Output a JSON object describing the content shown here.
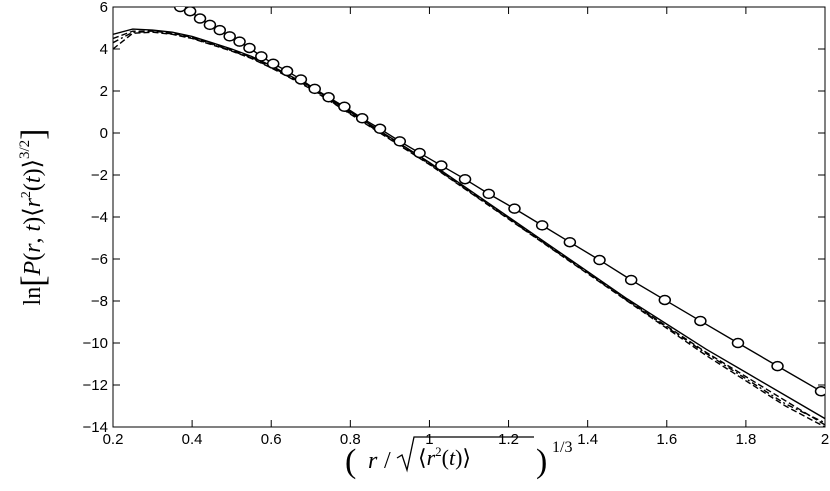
{
  "chart_data": {
    "type": "line",
    "title": "",
    "xlabel": "(r/√⟨r²(t)⟩)^{1/3}",
    "ylabel": "ln[P(r,t)⟨r²(t)⟩^{3/2}]",
    "xlim": [
      0.2,
      2.0
    ],
    "ylim": [
      -14,
      6
    ],
    "grid": false,
    "xticks": [
      0.2,
      0.4,
      0.6,
      0.8,
      1,
      1.2,
      1.4,
      1.6,
      1.8,
      2
    ],
    "xtick_labels": [
      "0.2",
      "0.4",
      "0.6",
      "0.8",
      "1",
      "1.2",
      "1.4",
      "1.6",
      "1.8",
      "2"
    ],
    "yticks": [
      -14,
      -12,
      -10,
      -8,
      -6,
      -4,
      -2,
      0,
      2,
      4,
      6
    ],
    "ytick_labels": [
      "−14",
      "−12",
      "−10",
      "−8",
      "−6",
      "−4",
      "−2",
      "0",
      "2",
      "4",
      "6"
    ],
    "series": [
      {
        "style": "solid",
        "x": [
          0.2,
          0.25,
          0.3,
          0.35,
          0.4,
          0.45,
          0.5,
          0.55,
          0.6,
          0.65,
          0.7,
          0.75,
          0.8,
          0.9,
          1.0,
          1.1,
          1.2,
          1.3,
          1.4,
          1.5,
          1.6,
          1.7,
          1.8,
          1.9,
          2.0
        ],
        "y": [
          4.7,
          4.95,
          4.9,
          4.8,
          4.6,
          4.3,
          4.0,
          3.65,
          3.2,
          2.7,
          2.2,
          1.6,
          1.0,
          -0.2,
          -1.4,
          -2.7,
          -4.0,
          -5.3,
          -6.6,
          -7.9,
          -9.1,
          -10.3,
          -11.4,
          -12.5,
          -13.6
        ]
      },
      {
        "style": "dashed",
        "x": [
          0.2,
          0.25,
          0.3,
          0.35,
          0.4,
          0.45,
          0.5,
          0.55,
          0.6,
          0.65,
          0.7,
          0.75,
          0.8,
          0.9,
          1.0,
          1.1,
          1.2,
          1.3,
          1.4,
          1.5,
          1.6,
          1.7,
          1.8,
          1.9,
          2.0
        ],
        "y": [
          4.5,
          4.85,
          4.85,
          4.75,
          4.55,
          4.25,
          3.95,
          3.6,
          3.15,
          2.65,
          2.15,
          1.55,
          0.95,
          -0.25,
          -1.45,
          -2.75,
          -4.05,
          -5.35,
          -6.65,
          -7.95,
          -9.2,
          -10.45,
          -11.6,
          -12.75,
          -13.9
        ]
      },
      {
        "style": "dashed",
        "x": [
          0.2,
          0.25,
          0.3,
          0.35,
          0.4,
          0.45,
          0.5,
          0.55,
          0.6,
          0.65,
          0.7,
          0.75,
          0.8,
          0.9,
          1.0,
          1.1,
          1.2,
          1.3,
          1.4,
          1.5,
          1.6,
          1.7,
          1.8,
          1.9,
          2.0
        ],
        "y": [
          4.0,
          4.75,
          4.8,
          4.7,
          4.5,
          4.2,
          3.9,
          3.55,
          3.1,
          2.6,
          2.1,
          1.5,
          0.9,
          -0.3,
          -1.5,
          -2.8,
          -4.1,
          -5.4,
          -6.7,
          -8.0,
          -9.3,
          -10.6,
          -11.8,
          -13.0,
          -14.0
        ]
      },
      {
        "style": "dash-dot",
        "x": [
          0.2,
          0.25,
          0.3,
          0.35,
          0.4,
          0.45,
          0.5,
          0.55,
          0.6,
          0.65,
          0.7,
          0.75,
          0.8,
          0.9,
          1.0,
          1.1,
          1.2,
          1.3,
          1.4,
          1.5,
          1.6,
          1.7,
          1.8,
          1.9,
          2.0
        ],
        "y": [
          4.3,
          4.8,
          4.82,
          4.72,
          4.52,
          4.22,
          3.92,
          3.57,
          3.12,
          2.62,
          2.12,
          1.52,
          0.92,
          -0.28,
          -1.48,
          -2.78,
          -4.08,
          -5.38,
          -6.68,
          -7.98,
          -9.25,
          -10.5,
          -11.7,
          -12.9,
          -13.8
        ]
      },
      {
        "style": "solid-circles",
        "x": [
          0.37,
          0.395,
          0.42,
          0.445,
          0.47,
          0.495,
          0.52,
          0.545,
          0.575,
          0.605,
          0.64,
          0.675,
          0.71,
          0.745,
          0.785,
          0.83,
          0.875,
          0.925,
          0.975,
          1.03,
          1.09,
          1.15,
          1.215,
          1.285,
          1.355,
          1.43,
          1.51,
          1.595,
          1.685,
          1.78,
          1.88,
          1.99
        ],
        "y": [
          6.0,
          5.8,
          5.45,
          5.15,
          4.9,
          4.6,
          4.35,
          4.05,
          3.65,
          3.3,
          2.95,
          2.55,
          2.1,
          1.7,
          1.25,
          0.7,
          0.2,
          -0.4,
          -0.95,
          -1.55,
          -2.2,
          -2.9,
          -3.6,
          -4.4,
          -5.2,
          -6.05,
          -7.0,
          -7.95,
          -8.95,
          -10.0,
          -11.1,
          -12.3
        ]
      }
    ]
  }
}
